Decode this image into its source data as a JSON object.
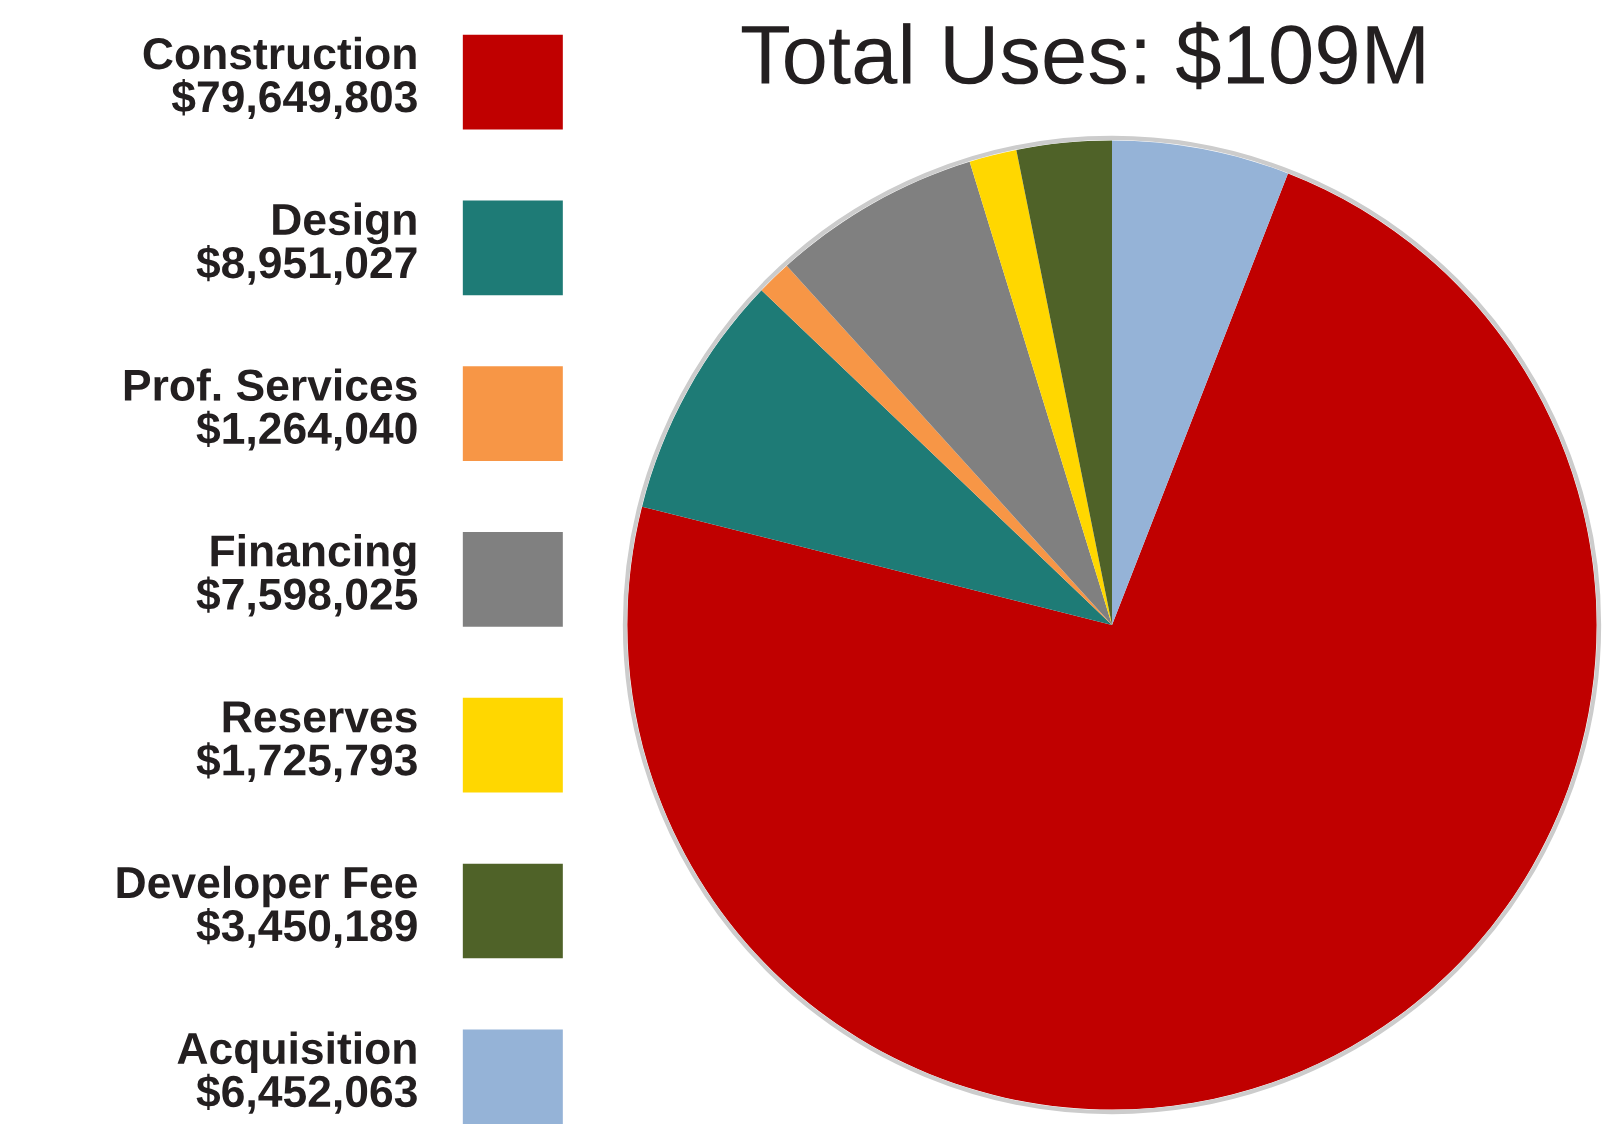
{
  "chart_data": {
    "type": "pie",
    "title": "Total Uses: $109M",
    "categories": [
      "Construction",
      "Design",
      "Prof. Services",
      "Financing",
      "Reserves",
      "Developer Fee",
      "Acquisition"
    ],
    "values": [
      79649803,
      8951027,
      1264040,
      7598025,
      1725793,
      3450189,
      6452063
    ],
    "value_labels": [
      "$79,649,803",
      "$8,951,027",
      "$1,264,040",
      "$7,598,025",
      "$1,725,793",
      "$3,450,189",
      "$6,452,063"
    ],
    "colors": [
      "#c00000",
      "#1e7b76",
      "#f79646",
      "#808080",
      "#ffd700",
      "#4f6228",
      "#95b3d7"
    ],
    "legend": "left"
  }
}
